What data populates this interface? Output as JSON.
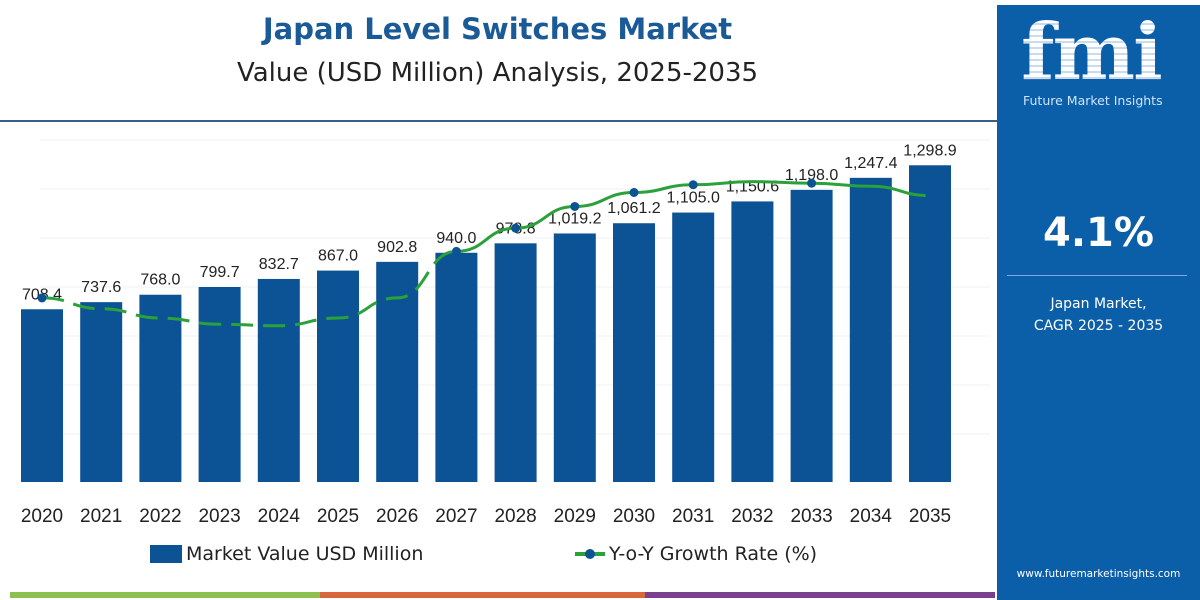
{
  "header": {
    "title": "Japan Level Switches Market",
    "subtitle": "Value (USD Million) Analysis, 2025-2035"
  },
  "panel": {
    "logo": "fmi",
    "logo_text": "Future Market Insights",
    "cagr_value": "4.1%",
    "cagr_label_1": "Japan Market,",
    "cagr_label_2": "CAGR 2025 - 2035",
    "url": "www.futuremarketinsights.com"
  },
  "colors": {
    "bar": "#0b5394",
    "line": "#2aa13a",
    "panel": "#0b5ea8",
    "title": "#1a5a96",
    "footer": [
      "#8cc152",
      "#d9673d",
      "#7b3f8f"
    ]
  },
  "chart_data": {
    "type": "bar",
    "categories": [
      "2020",
      "2021",
      "2022",
      "2023",
      "2024",
      "2025",
      "2026",
      "2027",
      "2028",
      "2029",
      "2030",
      "2031",
      "2032",
      "2033",
      "2034",
      "2035"
    ],
    "series": [
      {
        "name": "Market Value USD Million",
        "type": "bar",
        "values": [
          708.4,
          737.6,
          768.0,
          799.7,
          832.7,
          867.0,
          902.8,
          940.0,
          978.8,
          1019.2,
          1061.2,
          1105.0,
          1150.6,
          1198.0,
          1247.4,
          1298.9
        ],
        "labels": [
          "708.4",
          "737.6",
          "768.0",
          "799.7",
          "832.7",
          "867.0",
          "902.8",
          "940.0",
          "978.8",
          "1,019.2",
          "1,061.2",
          "1,105.0",
          "1,150.6",
          "1,198.0",
          "1,247.4",
          "1,298.9"
        ]
      },
      {
        "name": "Y-o-Y Growth Rate (%)",
        "type": "line",
        "relative_level": [
          0.22,
          0.15,
          0.09,
          0.05,
          0.04,
          0.09,
          0.22,
          0.52,
          0.67,
          0.81,
          0.9,
          0.95,
          0.97,
          0.96,
          0.94,
          0.88
        ]
      }
    ],
    "ylim": [
      0,
      1300
    ],
    "grid": true,
    "legend": "bottom"
  }
}
